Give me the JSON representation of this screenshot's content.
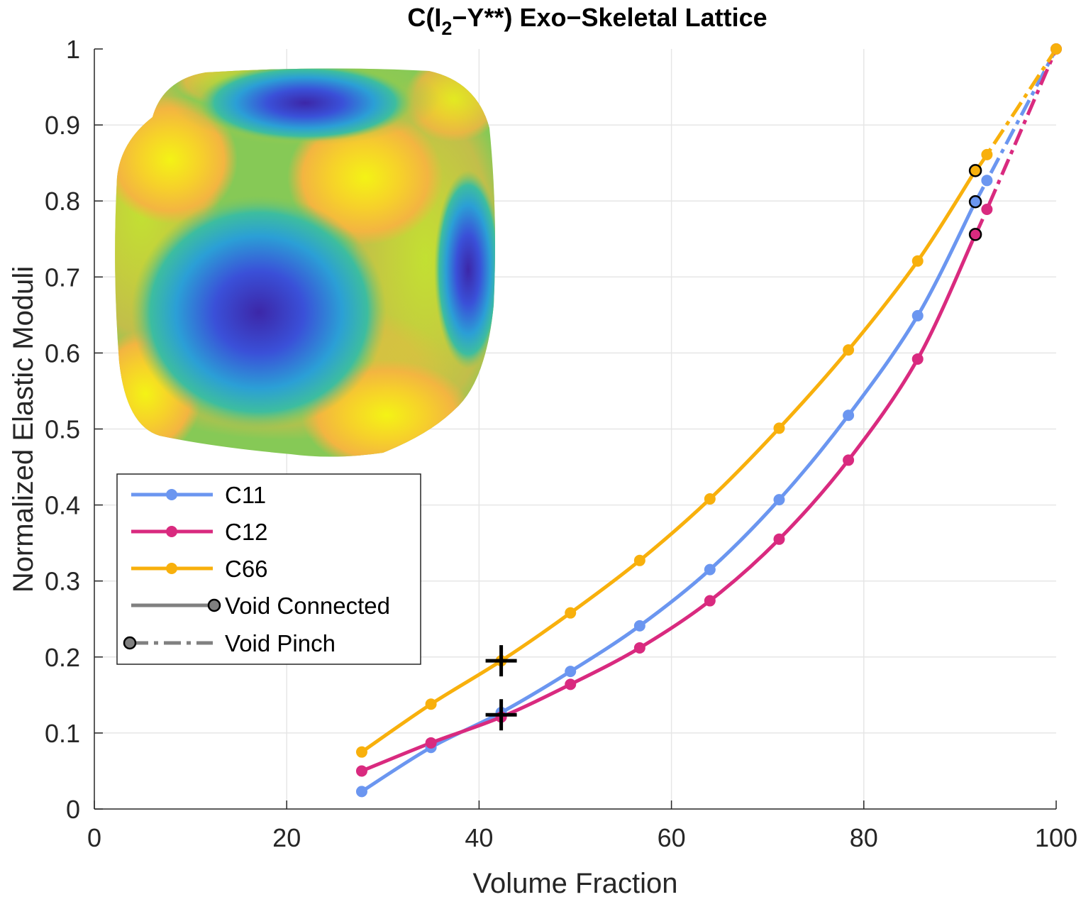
{
  "chart_data": {
    "type": "line",
    "title": {
      "prefix": "C(I",
      "subscript": "2",
      "suffix": "−Y**) Exo−Skeletal Lattice"
    },
    "xlabel": "Volume Fraction",
    "ylabel": "Normalized Elastic Moduli",
    "xlim": [
      0,
      100
    ],
    "ylim": [
      0,
      1
    ],
    "xticks": [
      0,
      20,
      40,
      60,
      80,
      100
    ],
    "yticks": [
      0,
      0.1,
      0.2,
      0.3,
      0.4,
      0.5,
      0.6,
      0.7,
      0.8,
      0.9,
      1
    ],
    "grid": true,
    "legend_position": "left",
    "series": [
      {
        "name": "C11",
        "color": "#6b96f0",
        "connected": {
          "x": [
            27.8,
            35.0,
            42.3,
            49.5,
            56.7,
            64.0,
            71.2,
            78.4,
            85.6,
            91.6
          ],
          "y": [
            0.023,
            0.081,
            0.127,
            0.181,
            0.241,
            0.315,
            0.407,
            0.518,
            0.649,
            0.799
          ]
        },
        "pinch": {
          "x": [
            91.6,
            92.8,
            100
          ],
          "y": [
            0.799,
            0.827,
            1.0
          ]
        }
      },
      {
        "name": "C12",
        "color": "#d92a7f",
        "connected": {
          "x": [
            27.8,
            35.0,
            42.3,
            49.5,
            56.7,
            64.0,
            71.2,
            78.4,
            85.6,
            91.6
          ],
          "y": [
            0.05,
            0.087,
            0.121,
            0.164,
            0.212,
            0.274,
            0.355,
            0.459,
            0.592,
            0.756
          ]
        },
        "pinch": {
          "x": [
            91.6,
            92.8,
            100
          ],
          "y": [
            0.756,
            0.789,
            1.0
          ]
        }
      },
      {
        "name": "C66",
        "color": "#f8b00c",
        "connected": {
          "x": [
            27.8,
            35.0,
            42.3,
            49.5,
            56.7,
            64.0,
            71.2,
            78.4,
            85.6,
            91.6
          ],
          "y": [
            0.075,
            0.138,
            0.195,
            0.258,
            0.327,
            0.408,
            0.501,
            0.604,
            0.721,
            0.84
          ]
        },
        "pinch": {
          "x": [
            91.6,
            92.8,
            100
          ],
          "y": [
            0.84,
            0.861,
            1.0
          ]
        }
      }
    ],
    "transition_markers": {
      "description": "black-outlined circles at void pinch transition",
      "x": [
        91.6,
        91.6,
        91.6
      ],
      "y": [
        0.84,
        0.799,
        0.756
      ]
    },
    "cross_markers": [
      {
        "x": 42.3,
        "y": 0.195
      },
      {
        "x": 42.3,
        "y": 0.124
      }
    ],
    "legend": {
      "entries": [
        "C11",
        "C12",
        "C66",
        "Void Connected",
        "Void Pinch"
      ],
      "style_entry_color": "#808080"
    },
    "inset": {
      "type": "3d-surface-image",
      "colormap": "parula"
    }
  }
}
